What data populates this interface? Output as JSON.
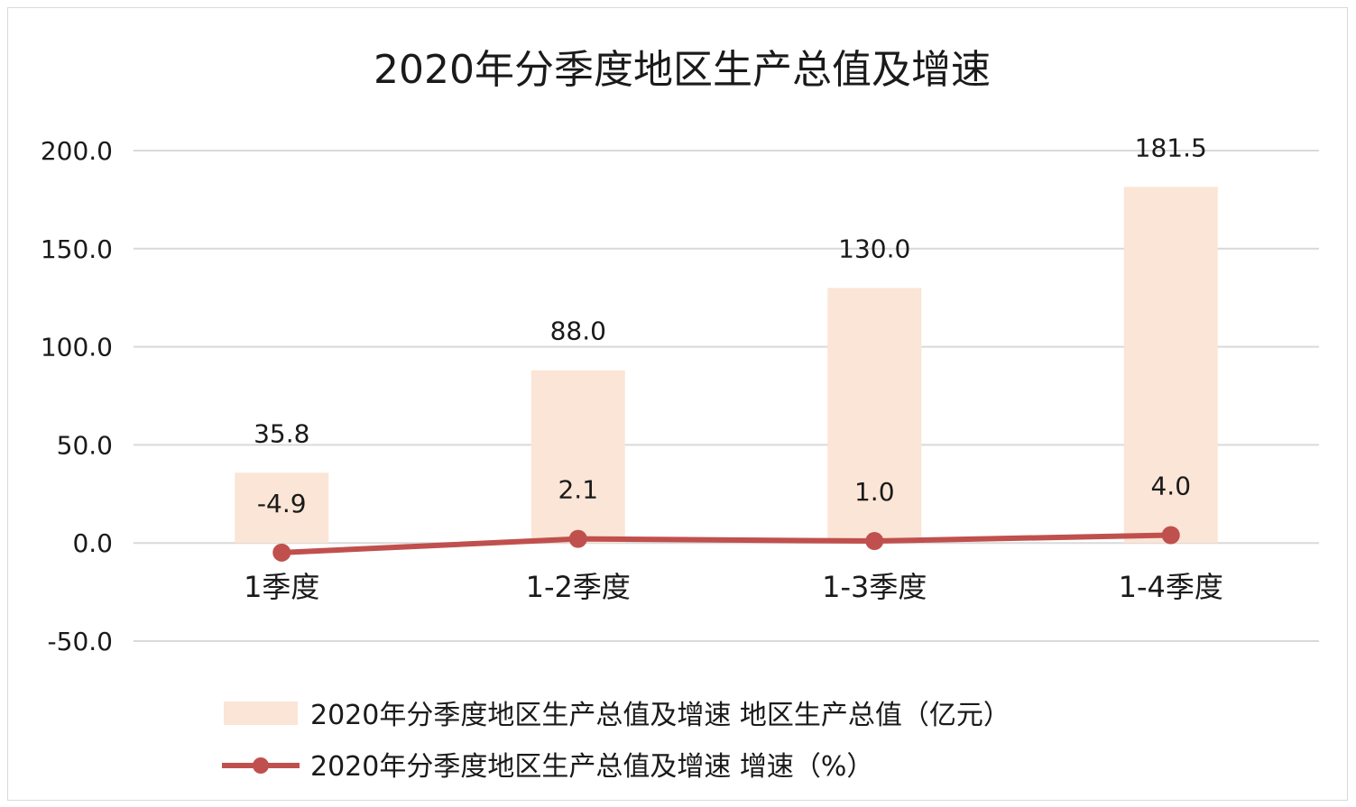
{
  "chart_data": {
    "type": "bar",
    "title": "2020年分季度地区生产总值及增速",
    "categories": [
      "1季度",
      "1-2季度",
      "1-3季度",
      "1-4季度"
    ],
    "series": [
      {
        "name": "2020年分季度地区生产总值及增速 地区生产总值（亿元）",
        "type": "bar",
        "values": [
          35.8,
          88.0,
          130.0,
          181.5
        ],
        "labels": [
          "35.8",
          "88.0",
          "130.0",
          "181.5"
        ],
        "color": "#fbe5d6"
      },
      {
        "name": "2020年分季度地区生产总值及增速 增速（%）",
        "type": "line",
        "values": [
          -4.9,
          2.1,
          1.0,
          4.0
        ],
        "labels": [
          "-4.9",
          "2.1",
          "1.0",
          "4.0"
        ],
        "color": "#c0504d"
      }
    ],
    "y_ticks": [
      "200.0",
      "150.0",
      "100.0",
      "50.0",
      "0.0",
      "-50.0"
    ],
    "ylim": [
      -50,
      200
    ],
    "grid": true,
    "legend_position": "bottom"
  }
}
